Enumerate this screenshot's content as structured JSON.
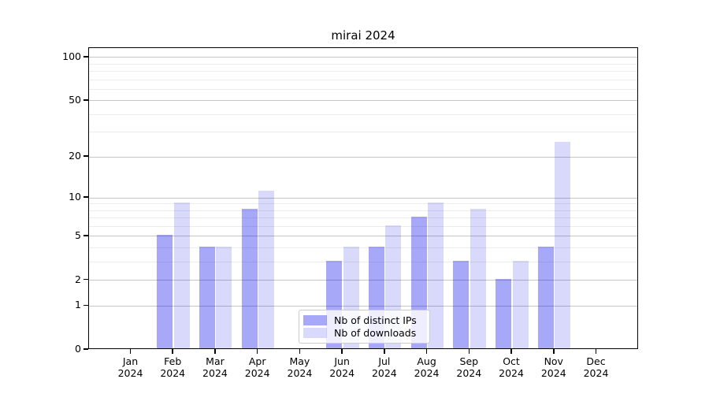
{
  "title": "mirai 2024",
  "chart_data": {
    "type": "bar",
    "title": "mirai 2024",
    "categories": [
      "Jan",
      "Feb",
      "Mar",
      "Apr",
      "May",
      "Jun",
      "Jul",
      "Aug",
      "Sep",
      "Oct",
      "Nov",
      "Dec"
    ],
    "year": "2024",
    "series": [
      {
        "name": "Nb of distinct IPs",
        "key": "distinct-ips",
        "color": "rgba(0,0,235,0.34)",
        "values": [
          0,
          5,
          4,
          8,
          0,
          3,
          4,
          7,
          3,
          2,
          4,
          0
        ]
      },
      {
        "name": "Nb of downloads",
        "key": "downloads",
        "color": "rgba(0,0,235,0.15)",
        "values": [
          0,
          9,
          4,
          11,
          0,
          4,
          6,
          9,
          8,
          3,
          25,
          0
        ]
      }
    ],
    "xlabel": "",
    "ylabel": "",
    "y_scale": "log1p",
    "ylim": [
      0,
      116
    ],
    "y_ticks_major": [
      0,
      1,
      2,
      5,
      10,
      20,
      50,
      100
    ],
    "y_ticks_minor": [
      3,
      4,
      6,
      7,
      8,
      9,
      30,
      40,
      60,
      70,
      80,
      90
    ],
    "grid": true,
    "legend_position": "bottom-center"
  },
  "colors": {
    "bar_dark": "rgba(0,0,235,0.34)",
    "bar_light": "rgba(0,0,235,0.15)",
    "grid_major": "#c6c6c6",
    "grid_minor": "#ececec",
    "axis": "#000000",
    "legend_border": "#cccccc"
  }
}
